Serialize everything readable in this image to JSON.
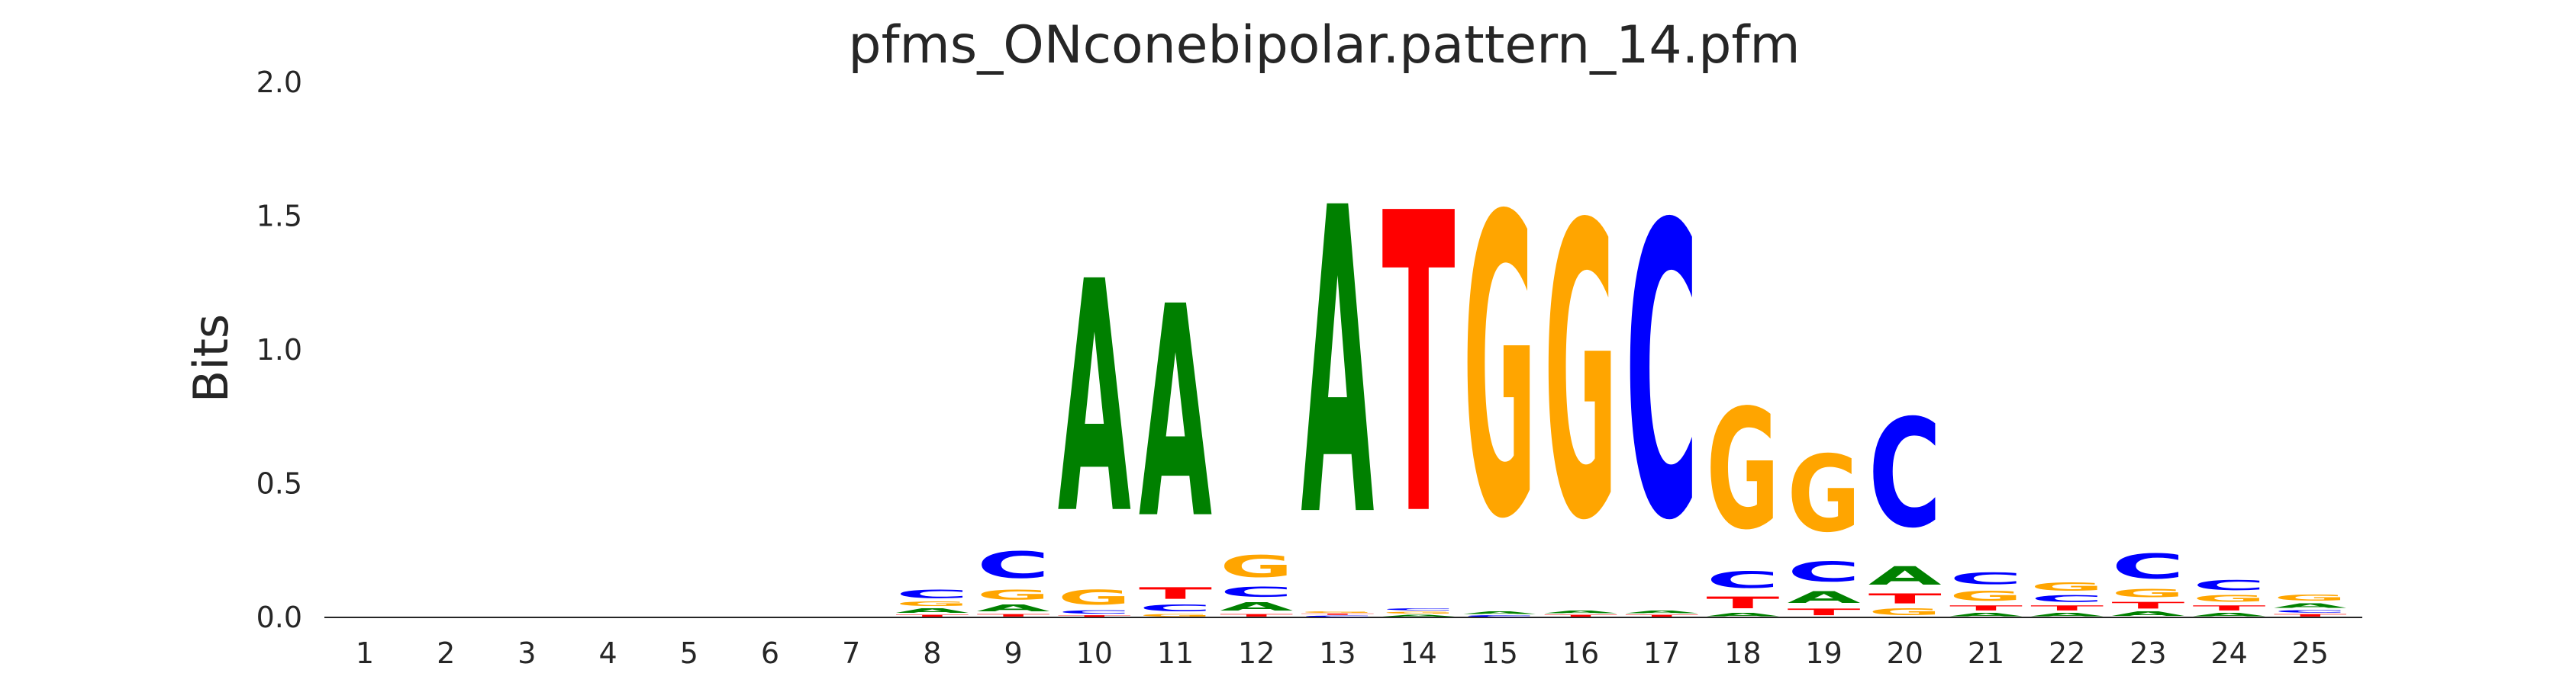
{
  "chart_data": {
    "type": "sequence-logo",
    "title": "pfms_ONconebipolar.pattern_14.pfm",
    "ylabel": "Bits",
    "xlabel": "",
    "ylim": [
      0,
      2
    ],
    "yticks": [
      "0.0",
      "0.5",
      "1.0",
      "1.5",
      "2.0"
    ],
    "grid": false,
    "colors": {
      "A": "#008000",
      "C": "#0000ff",
      "G": "#ffa500",
      "T": "#ff0000"
    },
    "positions": [
      {
        "label": "1",
        "stack": []
      },
      {
        "label": "2",
        "stack": []
      },
      {
        "label": "3",
        "stack": []
      },
      {
        "label": "4",
        "stack": []
      },
      {
        "label": "5",
        "stack": []
      },
      {
        "label": "6",
        "stack": []
      },
      {
        "label": "7",
        "stack": []
      },
      {
        "label": "8",
        "stack": [
          [
            "T",
            0.012
          ],
          [
            "A",
            0.025
          ],
          [
            "G",
            0.025
          ],
          [
            "C",
            0.05
          ]
        ]
      },
      {
        "label": "9",
        "stack": [
          [
            "T",
            0.015
          ],
          [
            "A",
            0.04
          ],
          [
            "G",
            0.06
          ],
          [
            "C",
            0.16
          ]
        ]
      },
      {
        "label": "10",
        "stack": [
          [
            "T",
            0.01
          ],
          [
            "C",
            0.02
          ],
          [
            "G",
            0.09
          ],
          [
            "A",
            1.39
          ]
        ]
      },
      {
        "label": "11",
        "stack": [
          [
            "G",
            0.015
          ],
          [
            "C",
            0.04
          ],
          [
            "T",
            0.07
          ],
          [
            "A",
            1.27
          ]
        ]
      },
      {
        "label": "12",
        "stack": [
          [
            "T",
            0.015
          ],
          [
            "A",
            0.05
          ],
          [
            "C",
            0.06
          ],
          [
            "G",
            0.13
          ]
        ]
      },
      {
        "label": "13",
        "stack": [
          [
            "C",
            0.008
          ],
          [
            "T",
            0.008
          ],
          [
            "G",
            0.008
          ],
          [
            "A",
            1.84
          ]
        ]
      },
      {
        "label": "14",
        "stack": [
          [
            "A",
            0.012
          ],
          [
            "G",
            0.012
          ],
          [
            "C",
            0.012
          ],
          [
            "T",
            1.8
          ]
        ]
      },
      {
        "label": "15",
        "stack": [
          [
            "C",
            0.01
          ],
          [
            "A",
            0.015
          ],
          [
            "G",
            1.8
          ]
        ]
      },
      {
        "label": "16",
        "stack": [
          [
            "T",
            0.012
          ],
          [
            "A",
            0.015
          ],
          [
            "G",
            1.76
          ]
        ]
      },
      {
        "label": "17",
        "stack": [
          [
            "T",
            0.012
          ],
          [
            "A",
            0.015
          ],
          [
            "C",
            1.76
          ]
        ]
      },
      {
        "label": "18",
        "stack": [
          [
            "A",
            0.02
          ],
          [
            "T",
            0.07
          ],
          [
            "C",
            0.1
          ],
          [
            "G",
            0.72
          ]
        ]
      },
      {
        "label": "19",
        "stack": [
          [
            "T",
            0.04
          ],
          [
            "A",
            0.07
          ],
          [
            "C",
            0.12
          ],
          [
            "G",
            0.46
          ]
        ]
      },
      {
        "label": "20",
        "stack": [
          [
            "G",
            0.04
          ],
          [
            "T",
            0.06
          ],
          [
            "A",
            0.11
          ],
          [
            "C",
            0.65
          ]
        ]
      },
      {
        "label": "21",
        "stack": [
          [
            "A",
            0.02
          ],
          [
            "T",
            0.03
          ],
          [
            "G",
            0.06
          ],
          [
            "C",
            0.07
          ]
        ]
      },
      {
        "label": "22",
        "stack": [
          [
            "A",
            0.02
          ],
          [
            "T",
            0.03
          ],
          [
            "C",
            0.04
          ],
          [
            "G",
            0.05
          ]
        ]
      },
      {
        "label": "23",
        "stack": [
          [
            "A",
            0.025
          ],
          [
            "T",
            0.04
          ],
          [
            "G",
            0.05
          ],
          [
            "C",
            0.15
          ]
        ]
      },
      {
        "label": "24",
        "stack": [
          [
            "A",
            0.02
          ],
          [
            "T",
            0.03
          ],
          [
            "G",
            0.04
          ],
          [
            "C",
            0.06
          ]
        ]
      },
      {
        "label": "25",
        "stack": [
          [
            "T",
            0.015
          ],
          [
            "C",
            0.015
          ],
          [
            "A",
            0.025
          ],
          [
            "G",
            0.035
          ]
        ]
      }
    ]
  }
}
